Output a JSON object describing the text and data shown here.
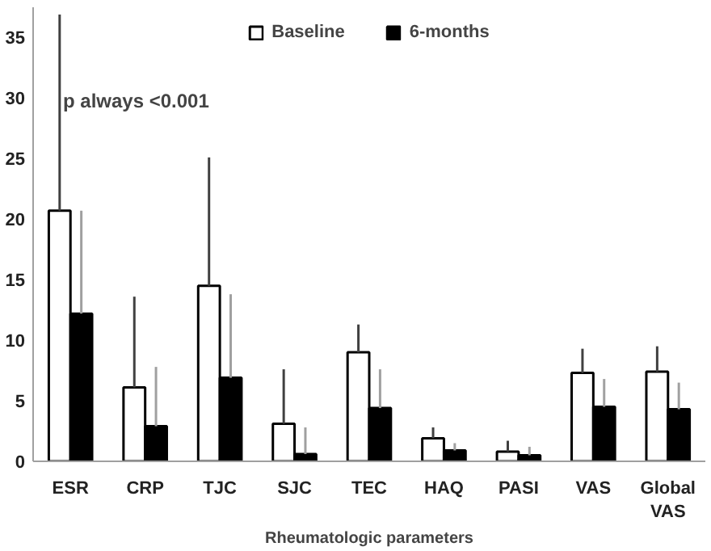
{
  "chart_data": {
    "type": "bar",
    "xlabel": "Rheumatologic parameters",
    "annotations": [
      "p always <0.001"
    ],
    "categories": [
      "ESR",
      "CRP",
      "TJC",
      "SJC",
      "TEC",
      "HAQ",
      "PASI",
      "VAS",
      "Global VAS"
    ],
    "series": [
      {
        "name": "Baseline",
        "color": "#ffffff",
        "values": [
          20.7,
          6.1,
          14.5,
          3.1,
          9.0,
          1.9,
          0.8,
          7.3,
          7.4
        ],
        "errors": [
          [
            20.7,
            36.9
          ],
          [
            6.1,
            13.6
          ],
          [
            14.5,
            25.1
          ],
          [
            3.1,
            7.6
          ],
          [
            9.0,
            11.3
          ],
          [
            1.9,
            2.8
          ],
          [
            0.8,
            1.7
          ],
          [
            7.3,
            9.3
          ],
          [
            7.4,
            9.5
          ]
        ]
      },
      {
        "name": "6-months",
        "color": "#000000",
        "values": [
          12.2,
          2.9,
          6.9,
          0.6,
          4.4,
          0.9,
          0.5,
          4.5,
          4.3
        ],
        "errors": [
          [
            12.2,
            20.7
          ],
          [
            2.9,
            7.8
          ],
          [
            6.9,
            13.8
          ],
          [
            0.6,
            2.8
          ],
          [
            4.4,
            7.6
          ],
          [
            0.9,
            1.5
          ],
          [
            0.5,
            1.2
          ],
          [
            4.5,
            6.8
          ],
          [
            4.3,
            6.5
          ]
        ]
      }
    ],
    "ylim": [
      0,
      37.5
    ],
    "yticks": [
      0,
      5,
      10,
      15,
      20,
      25,
      30,
      35
    ],
    "grid": false,
    "legend": "top"
  }
}
